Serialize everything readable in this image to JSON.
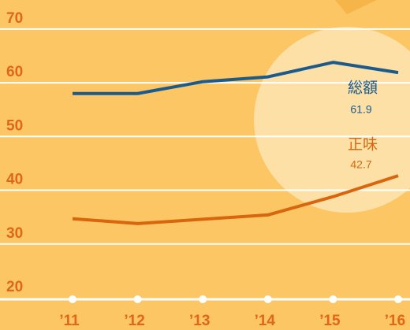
{
  "chart_data": {
    "type": "line",
    "categories": [
      "’11",
      "’12",
      "’13",
      "’14",
      "’15",
      "’16"
    ],
    "series": [
      {
        "name": "総額",
        "color": "#1b5a8c",
        "values": [
          58,
          58,
          60.2,
          61.1,
          63.8,
          61.9
        ]
      },
      {
        "name": "正味",
        "color": "#d9650f",
        "values": [
          34.7,
          33.8,
          34.6,
          35.4,
          38.8,
          42.7
        ]
      }
    ],
    "ylim": [
      20,
      75.4
    ],
    "yticks": [
      20,
      30,
      40,
      50,
      60,
      70
    ],
    "grid": true
  }
}
